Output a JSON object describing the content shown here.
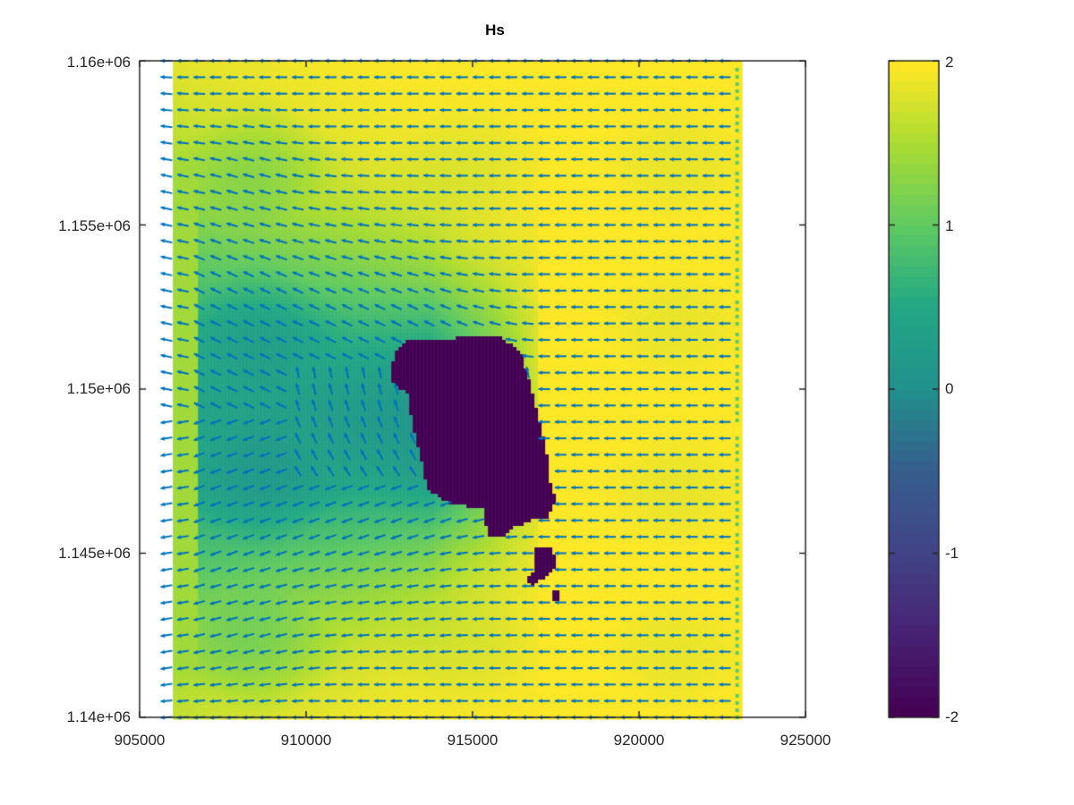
{
  "chart_data": {
    "type": "heatmap",
    "overlay": "quiver",
    "title": "Hs",
    "xlabel": "",
    "ylabel": "",
    "xlim": [
      905000,
      925000
    ],
    "ylim": [
      1140000,
      1160000
    ],
    "xticks": [
      905000,
      910000,
      915000,
      920000,
      925000
    ],
    "xtick_labels": [
      "905000",
      "910000",
      "915000",
      "920000",
      "925000"
    ],
    "yticks": [
      1140000,
      1145000,
      1150000,
      1155000,
      1160000
    ],
    "ytick_labels": [
      "1.14e+06",
      "1.145e+06",
      "1.15e+06",
      "1.155e+06",
      "1.16e+06"
    ],
    "data_extent_x": [
      906000,
      923000
    ],
    "colorbar": {
      "colormap": "viridis",
      "clim": [
        -2,
        2
      ],
      "ticks": [
        2,
        1,
        0,
        -1,
        -2
      ],
      "tick_labels": [
        "2",
        "1",
        "0",
        "-1",
        "-2"
      ]
    },
    "field_description": "Hs ~2 (yellow) in open water with westward wave vectors; island/land mask (value -2, dark purple) centered near x=915000, y=1149000; sheltered lee zone to the west with Hs ~0.5-1.5 (green/teal) and vectors rotating southwest",
    "island": {
      "center_x": 915000,
      "center_y": 1149000,
      "value": -2
    },
    "open_water_value": 2,
    "vector_color": "#0072BD",
    "vector_direction": "west (-x)"
  },
  "plot": {
    "title": "Hs"
  }
}
